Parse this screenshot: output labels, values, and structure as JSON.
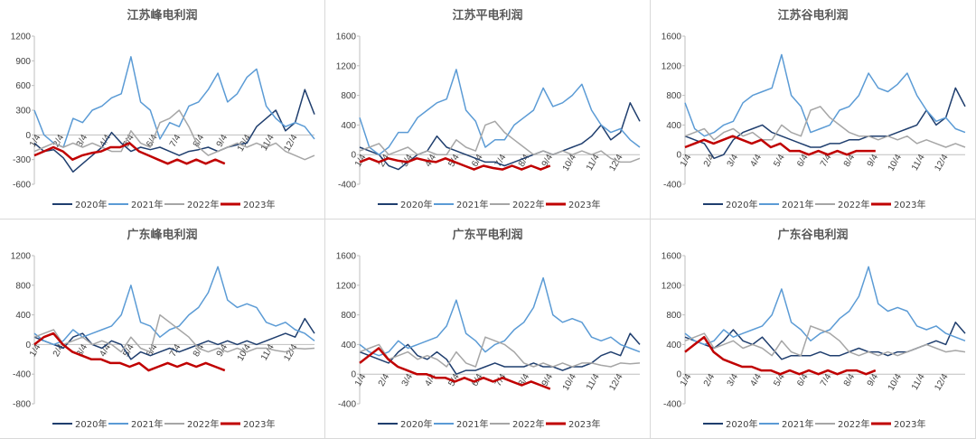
{
  "colors": {
    "2020": "#1f3e6e",
    "2021": "#5b9bd5",
    "2022": "#a6a6a6",
    "2023": "#c00000"
  },
  "chart_data": [
    {
      "type": "line",
      "title": "江苏峰电利润",
      "ylim": [
        -600,
        1200
      ],
      "yticks": [
        "1200",
        "900",
        "600",
        "300",
        "0",
        "-300",
        "-600"
      ],
      "xticks": [
        "1/4",
        "2/4",
        "3/4",
        "4/4",
        "5/4",
        "6/4",
        "7/4",
        "8/4",
        "9/4",
        "10/4",
        "11/4",
        "12/4"
      ],
      "legend": [
        "2020年",
        "2021年",
        "2022年",
        "2023年"
      ],
      "legend_position": "bottom",
      "series": [
        {
          "name": "2020年",
          "values": [
            -100,
            -200,
            -180,
            -280,
            -450,
            -350,
            -250,
            -150,
            30,
            -100,
            -200,
            -150,
            -180,
            -150,
            -200,
            -250,
            -200,
            -180,
            -150,
            -200,
            -150,
            -120,
            -100,
            100,
            200,
            300,
            50,
            150,
            550,
            250
          ]
        },
        {
          "name": "2021年",
          "values": [
            300,
            0,
            -100,
            -150,
            200,
            150,
            300,
            350,
            450,
            500,
            950,
            400,
            300,
            -50,
            150,
            100,
            350,
            400,
            550,
            750,
            400,
            500,
            700,
            800,
            350,
            200,
            100,
            150,
            100,
            -50
          ]
        },
        {
          "name": "2022年",
          "values": [
            -200,
            -150,
            -100,
            -150,
            -100,
            -150,
            -100,
            -150,
            -200,
            -200,
            50,
            -100,
            -150,
            150,
            200,
            300,
            100,
            -150,
            -250,
            -200,
            -150,
            -100,
            -150,
            -100,
            -150,
            -100,
            -200,
            -250,
            -300,
            -250
          ]
        },
        {
          "name": "2023年",
          "values": [
            -250,
            -200,
            -150,
            -200,
            -300,
            -250,
            -220,
            -200,
            -150,
            -150,
            -100,
            -200,
            -250,
            -300,
            -350,
            -300,
            -350,
            -300,
            -350,
            -300,
            -350
          ]
        }
      ]
    },
    {
      "type": "line",
      "title": "江苏平电利润",
      "ylim": [
        -400,
        1600
      ],
      "yticks": [
        "1600",
        "1200",
        "800",
        "400",
        "0",
        "-400"
      ],
      "xticks": [
        "1/4",
        "2/4",
        "3/4",
        "4/4",
        "5/4",
        "6/4",
        "7/4",
        "8/4",
        "9/4",
        "10/4",
        "11/4",
        "12/4"
      ],
      "legend": [
        "2020年",
        "2021年",
        "2022年",
        "2023年"
      ],
      "legend_position": "bottom",
      "series": [
        {
          "name": "2020年",
          "values": [
            100,
            50,
            0,
            -150,
            -200,
            -100,
            0,
            50,
            250,
            100,
            50,
            0,
            -50,
            -100,
            -100,
            -150,
            -100,
            -50,
            0,
            50,
            0,
            50,
            100,
            150,
            250,
            400,
            200,
            300,
            700,
            450
          ]
        },
        {
          "name": "2021年",
          "values": [
            500,
            100,
            0,
            100,
            300,
            300,
            500,
            600,
            700,
            750,
            1150,
            600,
            450,
            100,
            200,
            200,
            400,
            500,
            600,
            900,
            650,
            700,
            800,
            950,
            600,
            400,
            300,
            350,
            200,
            100
          ]
        },
        {
          "name": "2022年",
          "values": [
            50,
            100,
            150,
            0,
            50,
            100,
            0,
            50,
            0,
            0,
            200,
            100,
            50,
            400,
            450,
            300,
            200,
            100,
            0,
            50,
            0,
            50,
            0,
            50,
            0,
            50,
            -50,
            -100,
            -100,
            -50
          ]
        },
        {
          "name": "2023年",
          "values": [
            -100,
            -50,
            -100,
            -50,
            -80,
            -100,
            -50,
            -80,
            -100,
            -50,
            -100,
            -150,
            -200,
            -150,
            -180,
            -200,
            -150,
            -200,
            -150,
            -200,
            -150
          ]
        }
      ]
    },
    {
      "type": "line",
      "title": "江苏谷电利润",
      "ylim": [
        -400,
        1600
      ],
      "yticks": [
        "1600",
        "1200",
        "800",
        "400",
        "0",
        "-400"
      ],
      "xticks": [
        "1/4",
        "2/4",
        "3/4",
        "4/4",
        "5/4",
        "6/4",
        "7/4",
        "8/4",
        "9/4",
        "10/4",
        "11/4",
        "12/4"
      ],
      "legend": [
        "2020年",
        "2021年",
        "2022年",
        "2023年"
      ],
      "legend_position": "bottom",
      "series": [
        {
          "name": "2020年",
          "values": [
            250,
            200,
            150,
            -50,
            0,
            200,
            300,
            350,
            400,
            300,
            250,
            200,
            150,
            100,
            100,
            150,
            150,
            200,
            200,
            250,
            250,
            250,
            300,
            350,
            400,
            600,
            400,
            500,
            900,
            650
          ]
        },
        {
          "name": "2021年",
          "values": [
            700,
            350,
            250,
            300,
            400,
            450,
            700,
            800,
            850,
            900,
            1350,
            800,
            650,
            300,
            350,
            400,
            600,
            650,
            800,
            1100,
            900,
            850,
            950,
            1100,
            800,
            600,
            450,
            500,
            350,
            300
          ]
        },
        {
          "name": "2022年",
          "values": [
            250,
            300,
            350,
            200,
            300,
            350,
            250,
            300,
            200,
            200,
            400,
            300,
            250,
            600,
            650,
            500,
            400,
            300,
            250,
            250,
            200,
            250,
            200,
            250,
            150,
            200,
            150,
            100,
            150,
            100
          ]
        },
        {
          "name": "2023年",
          "values": [
            100,
            150,
            200,
            150,
            200,
            250,
            200,
            150,
            200,
            100,
            150,
            50,
            50,
            0,
            50,
            0,
            50,
            0,
            50,
            50,
            50
          ]
        }
      ]
    },
    {
      "type": "line",
      "title": "广东峰电利润",
      "ylim": [
        -800,
        1200
      ],
      "yticks": [
        "1200",
        "800",
        "400",
        "0",
        "-400",
        "-800"
      ],
      "xticks": [
        "1/4",
        "2/4",
        "3/4",
        "4/4",
        "5/4",
        "6/4",
        "7/4",
        "8/4",
        "9/4",
        "10/4",
        "11/4",
        "12/4"
      ],
      "legend": [
        "2020年",
        "2021年",
        "2022年",
        "2023年"
      ],
      "legend_position": "bottom",
      "series": [
        {
          "name": "2020年",
          "values": [
            100,
            50,
            0,
            -50,
            100,
            150,
            0,
            -50,
            50,
            0,
            -200,
            -100,
            -150,
            -100,
            -50,
            -100,
            -50,
            0,
            50,
            0,
            50,
            0,
            50,
            0,
            50,
            100,
            150,
            100,
            350,
            150
          ]
        },
        {
          "name": "2021年",
          "values": [
            150,
            50,
            0,
            50,
            200,
            100,
            150,
            200,
            250,
            400,
            800,
            300,
            250,
            100,
            200,
            250,
            400,
            500,
            700,
            1050,
            600,
            500,
            550,
            500,
            300,
            250,
            300,
            200,
            150,
            50
          ]
        },
        {
          "name": "2022年",
          "values": [
            100,
            150,
            200,
            0,
            50,
            100,
            0,
            50,
            0,
            -100,
            100,
            -50,
            -100,
            400,
            300,
            200,
            100,
            -50,
            -100,
            -50,
            -100,
            -50,
            -100,
            -50,
            -50,
            -80,
            -100,
            -50,
            -60,
            -50
          ]
        },
        {
          "name": "2023年",
          "values": [
            0,
            100,
            150,
            0,
            -100,
            -150,
            -200,
            -200,
            -250,
            -250,
            -300,
            -250,
            -350,
            -300,
            -250,
            -300,
            -250,
            -300,
            -250,
            -300,
            -350
          ]
        }
      ]
    },
    {
      "type": "line",
      "title": "广东平电利润",
      "ylim": [
        -400,
        1600
      ],
      "yticks": [
        "1600",
        "1200",
        "800",
        "400",
        "0",
        "-400"
      ],
      "xticks": [
        "1/4",
        "2/4",
        "3/4",
        "4/4",
        "5/4",
        "6/4",
        "7/4",
        "8/4",
        "9/4",
        "10/4",
        "11/4",
        "12/4"
      ],
      "legend": [
        "2020年",
        "2021年",
        "2022年",
        "2023年"
      ],
      "legend_position": "bottom",
      "series": [
        {
          "name": "2020年",
          "values": [
            300,
            250,
            200,
            150,
            300,
            400,
            250,
            200,
            300,
            200,
            0,
            50,
            50,
            100,
            150,
            100,
            100,
            100,
            150,
            100,
            100,
            50,
            100,
            100,
            150,
            250,
            300,
            250,
            550,
            400
          ]
        },
        {
          "name": "2021年",
          "values": [
            400,
            300,
            250,
            300,
            450,
            350,
            400,
            450,
            500,
            650,
            1000,
            550,
            450,
            300,
            400,
            450,
            600,
            700,
            900,
            1300,
            800,
            700,
            750,
            700,
            500,
            450,
            500,
            400,
            350,
            300
          ]
        },
        {
          "name": "2022年",
          "values": [
            300,
            350,
            400,
            200,
            250,
            300,
            200,
            250,
            200,
            100,
            300,
            150,
            100,
            500,
            450,
            400,
            300,
            150,
            100,
            150,
            100,
            150,
            100,
            150,
            150,
            120,
            100,
            150,
            140,
            150
          ]
        },
        {
          "name": "2023年",
          "values": [
            150,
            250,
            350,
            200,
            100,
            50,
            0,
            0,
            -50,
            -50,
            -100,
            -50,
            -100,
            -50,
            -100,
            -50,
            -100,
            -150,
            -100,
            -150,
            -200
          ]
        }
      ]
    },
    {
      "type": "line",
      "title": "广东谷电利润",
      "ylim": [
        -400,
        1600
      ],
      "yticks": [
        "1600",
        "1200",
        "800",
        "400",
        "0",
        "-400"
      ],
      "xticks": [
        "1/4",
        "2/4",
        "3/4",
        "4/4",
        "5/4",
        "6/4",
        "7/4",
        "8/4",
        "9/4",
        "10/4",
        "11/4",
        "12/4"
      ],
      "legend": [
        "2020年",
        "2021年",
        "2022年",
        "2023年"
      ],
      "legend_position": "bottom",
      "series": [
        {
          "name": "2020年",
          "values": [
            500,
            450,
            400,
            350,
            450,
            600,
            450,
            400,
            500,
            350,
            200,
            250,
            250,
            250,
            300,
            250,
            250,
            300,
            350,
            300,
            300,
            250,
            300,
            300,
            350,
            400,
            450,
            400,
            700,
            550
          ]
        },
        {
          "name": "2021年",
          "values": [
            550,
            450,
            400,
            450,
            600,
            500,
            550,
            600,
            650,
            800,
            1150,
            700,
            600,
            450,
            550,
            600,
            750,
            850,
            1050,
            1450,
            950,
            850,
            900,
            850,
            650,
            600,
            650,
            550,
            500,
            450
          ]
        },
        {
          "name": "2022年",
          "values": [
            450,
            500,
            550,
            350,
            400,
            450,
            350,
            400,
            350,
            250,
            450,
            300,
            250,
            650,
            600,
            550,
            450,
            300,
            250,
            300,
            250,
            300,
            250,
            300,
            350,
            400,
            350,
            300,
            320,
            300
          ]
        },
        {
          "name": "2023年",
          "values": [
            300,
            400,
            500,
            300,
            200,
            150,
            100,
            100,
            50,
            50,
            0,
            50,
            0,
            50,
            0,
            50,
            0,
            50,
            50,
            0,
            50
          ]
        }
      ]
    }
  ]
}
